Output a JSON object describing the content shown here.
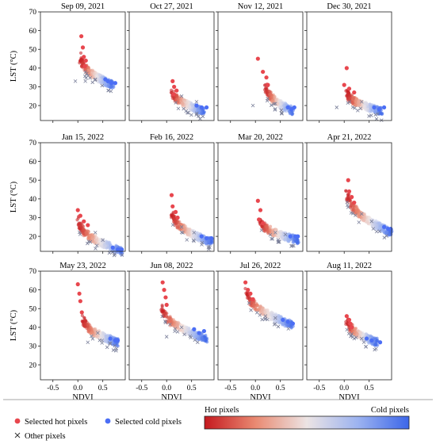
{
  "figure": {
    "ylabel": "LST (°C)",
    "xlabel": "NDVI",
    "xticks": [
      -0.5,
      0.0,
      0.5
    ],
    "yticks": [
      20,
      30,
      40,
      50,
      60,
      70
    ],
    "xlim": [
      -0.75,
      0.95
    ],
    "ylim": [
      12,
      70
    ]
  },
  "legend": {
    "hot_label": "Selected hot pixels",
    "cold_label": "Selected cold pixels",
    "other_label": "Other pixels",
    "hot_color": "#e8474e",
    "cold_color": "#4b6ef5",
    "colorbar_left": "Hot pixels",
    "colorbar_right": "Cold pixels",
    "colorbar_colors": [
      "#c5191f",
      "#e98a72",
      "#ece4e4",
      "#9cb3f0",
      "#3c66e9"
    ]
  },
  "chart_data": [
    {
      "type": "scatter",
      "title": "Sep 09, 2021",
      "ndvi_range": [
        0.05,
        0.7
      ],
      "lst_min": 31,
      "lst_max": 47,
      "hot_points": [
        [
          0.07,
          57
        ],
        [
          0.1,
          51
        ],
        [
          0.12,
          46
        ],
        [
          0.16,
          44
        ],
        [
          0.14,
          41
        ]
      ],
      "cold_points": [
        [
          0.55,
          34
        ],
        [
          0.6,
          33
        ],
        [
          0.67,
          32
        ],
        [
          0.75,
          32
        ]
      ],
      "other_points": [
        [
          -0.05,
          33
        ],
        [
          0.15,
          33
        ],
        [
          0.35,
          34
        ]
      ]
    },
    {
      "type": "scatter",
      "title": "Oct 27, 2021",
      "ndvi_range": [
        0.1,
        0.75
      ],
      "lst_min": 17,
      "lst_max": 29,
      "hot_points": [
        [
          0.12,
          33
        ],
        [
          0.15,
          30
        ],
        [
          0.2,
          28
        ],
        [
          0.14,
          26
        ]
      ],
      "cold_points": [
        [
          0.6,
          20
        ],
        [
          0.7,
          19
        ],
        [
          0.8,
          19
        ]
      ],
      "other_points": [
        [
          0.3,
          25
        ],
        [
          0.6,
          22
        ]
      ]
    },
    {
      "type": "scatter",
      "title": "Nov 12, 2021",
      "ndvi_range": [
        0.2,
        0.75
      ],
      "lst_min": 17,
      "lst_max": 32,
      "hot_points": [
        [
          0.05,
          45
        ],
        [
          0.15,
          38
        ],
        [
          0.22,
          35
        ],
        [
          0.25,
          31
        ]
      ],
      "cold_points": [
        [
          0.65,
          19
        ],
        [
          0.72,
          18
        ],
        [
          0.78,
          19
        ]
      ],
      "other_points": [
        [
          -0.05,
          20
        ],
        [
          0.4,
          21
        ]
      ]
    },
    {
      "type": "scatter",
      "title": "Dec 30, 2021",
      "ndvi_range": [
        0.05,
        0.75
      ],
      "lst_min": 17,
      "lst_max": 28,
      "hot_points": [
        [
          0.05,
          40
        ],
        [
          0.0,
          31
        ],
        [
          0.1,
          29
        ],
        [
          0.2,
          27
        ]
      ],
      "cold_points": [
        [
          0.6,
          19
        ],
        [
          0.7,
          18
        ],
        [
          0.8,
          19
        ]
      ],
      "other_points": [
        [
          -0.15,
          19
        ],
        [
          0.35,
          22
        ]
      ]
    },
    {
      "type": "scatter",
      "title": "Jan 15, 2022",
      "ndvi_range": [
        0.0,
        0.9
      ],
      "lst_min": 12,
      "lst_max": 30,
      "hot_points": [
        [
          0.0,
          34
        ],
        [
          0.05,
          31
        ],
        [
          0.12,
          28
        ],
        [
          0.2,
          26
        ]
      ],
      "cold_points": [
        [
          0.7,
          14
        ],
        [
          0.8,
          13
        ],
        [
          0.88,
          13
        ]
      ],
      "other_points": [
        [
          0.35,
          22
        ],
        [
          0.5,
          18
        ]
      ]
    },
    {
      "type": "scatter",
      "title": "Feb 16, 2022",
      "ndvi_range": [
        0.1,
        0.9
      ],
      "lst_min": 17,
      "lst_max": 34,
      "hot_points": [
        [
          0.1,
          42
        ],
        [
          0.12,
          36
        ],
        [
          0.18,
          33
        ],
        [
          0.22,
          30
        ]
      ],
      "cold_points": [
        [
          0.7,
          20
        ],
        [
          0.8,
          19
        ],
        [
          0.9,
          19
        ]
      ],
      "other_points": [
        [
          0.3,
          25
        ],
        [
          0.55,
          22
        ]
      ]
    },
    {
      "type": "scatter",
      "title": "Mar 20, 2022",
      "ndvi_range": [
        0.1,
        0.85
      ],
      "lst_min": 18,
      "lst_max": 29,
      "hot_points": [
        [
          0.05,
          39
        ],
        [
          0.1,
          34
        ],
        [
          0.07,
          29
        ],
        [
          0.15,
          27
        ]
      ],
      "cold_points": [
        [
          0.7,
          20
        ],
        [
          0.8,
          20
        ],
        [
          0.85,
          20
        ]
      ],
      "other_points": [
        [
          0.4,
          22
        ],
        [
          0.6,
          21
        ]
      ]
    },
    {
      "type": "scatter",
      "title": "Apr 21, 2022",
      "ndvi_range": [
        0.05,
        0.95
      ],
      "lst_min": 22,
      "lst_max": 45,
      "hot_points": [
        [
          0.08,
          50
        ],
        [
          0.1,
          44
        ],
        [
          0.15,
          41
        ],
        [
          0.2,
          38
        ]
      ],
      "cold_points": [
        [
          0.8,
          25
        ],
        [
          0.88,
          24
        ],
        [
          0.93,
          24
        ]
      ],
      "other_points": [
        [
          0.35,
          32
        ],
        [
          0.55,
          28
        ]
      ]
    },
    {
      "type": "scatter",
      "title": "May 23, 2022",
      "ndvi_range": [
        0.1,
        0.8
      ],
      "lst_min": 32,
      "lst_max": 46,
      "hot_points": [
        [
          0.0,
          63
        ],
        [
          0.03,
          58
        ],
        [
          0.05,
          54
        ],
        [
          0.08,
          48
        ]
      ],
      "cold_points": [
        [
          0.65,
          34
        ],
        [
          0.75,
          33
        ],
        [
          0.8,
          33
        ]
      ],
      "other_points": [
        [
          0.2,
          32
        ],
        [
          0.4,
          37
        ]
      ]
    },
    {
      "type": "scatter",
      "title": "Jun 08, 2022",
      "ndvi_range": [
        -0.1,
        0.8
      ],
      "lst_min": 34,
      "lst_max": 52,
      "hot_points": [
        [
          -0.08,
          64
        ],
        [
          -0.05,
          60
        ],
        [
          -0.02,
          56
        ],
        [
          0.0,
          52
        ]
      ],
      "cold_points": [
        [
          0.55,
          39
        ],
        [
          0.65,
          37
        ],
        [
          0.75,
          38
        ]
      ],
      "other_points": [
        [
          0.0,
          35
        ],
        [
          0.3,
          40
        ]
      ]
    },
    {
      "type": "scatter",
      "title": "Jul 26, 2022",
      "ndvi_range": [
        -0.2,
        0.75
      ],
      "lst_min": 41,
      "lst_max": 62,
      "hot_points": [
        [
          -0.2,
          64
        ],
        [
          -0.15,
          60
        ],
        [
          -0.1,
          58
        ],
        [
          -0.05,
          55
        ]
      ],
      "cold_points": [
        [
          0.55,
          44
        ],
        [
          0.65,
          43
        ],
        [
          0.75,
          42
        ]
      ],
      "other_points": [
        [
          0.2,
          46
        ],
        [
          0.4,
          45
        ]
      ]
    },
    {
      "type": "scatter",
      "title": "Aug 11, 2022",
      "ndvi_range": [
        0.05,
        0.65
      ],
      "lst_min": 32,
      "lst_max": 45,
      "hot_points": [
        [
          0.05,
          46
        ],
        [
          0.1,
          44
        ],
        [
          0.12,
          42
        ],
        [
          0.15,
          40
        ]
      ],
      "cold_points": [
        [
          0.45,
          34
        ],
        [
          0.55,
          33
        ],
        [
          0.72,
          32
        ]
      ],
      "other_points": [
        [
          0.2,
          34
        ],
        [
          0.35,
          34
        ]
      ]
    }
  ]
}
